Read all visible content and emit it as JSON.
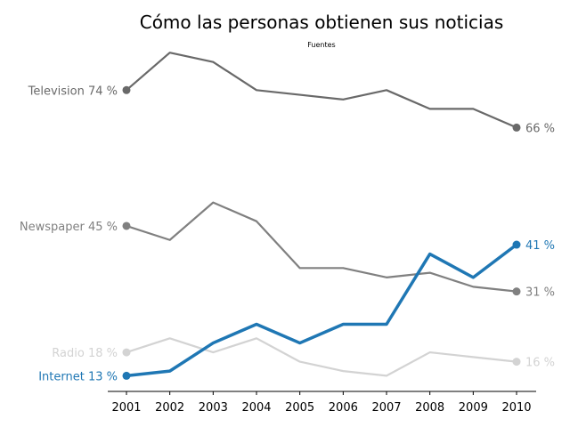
{
  "chart_data": {
    "type": "line",
    "title": "Cómo las personas obtienen sus noticias",
    "subtitle": "Fuentes",
    "xlabel": "",
    "ylabel": "",
    "x": [
      "2001",
      "2002",
      "2003",
      "2004",
      "2005",
      "2006",
      "2007",
      "2008",
      "2009",
      "2010"
    ],
    "ylim": [
      10,
      80
    ],
    "grid": false,
    "legend": "none",
    "series": [
      {
        "name": "Television",
        "color": "#696969",
        "values": [
          74,
          82,
          80,
          74,
          73,
          72,
          74,
          70,
          70,
          66
        ],
        "start_label": "Television 74 %",
        "end_label": "66 %"
      },
      {
        "name": "Newspaper",
        "color": "#808080",
        "values": [
          45,
          42,
          50,
          46,
          36,
          36,
          34,
          35,
          32,
          31
        ],
        "start_label": "Newspaper 45 %",
        "end_label": "31 %"
      },
      {
        "name": "Radio",
        "color": "#d3d3d3",
        "values": [
          18,
          21,
          18,
          21,
          16,
          14,
          13,
          18,
          17,
          16
        ],
        "start_label": "Radio 18 %",
        "end_label": "16 %"
      },
      {
        "name": "Internet",
        "color": "#1f77b4",
        "values": [
          13,
          14,
          20,
          24,
          20,
          24,
          24,
          39,
          34,
          41
        ],
        "start_label": "Internet 13 %",
        "end_label": "41 %"
      }
    ]
  }
}
